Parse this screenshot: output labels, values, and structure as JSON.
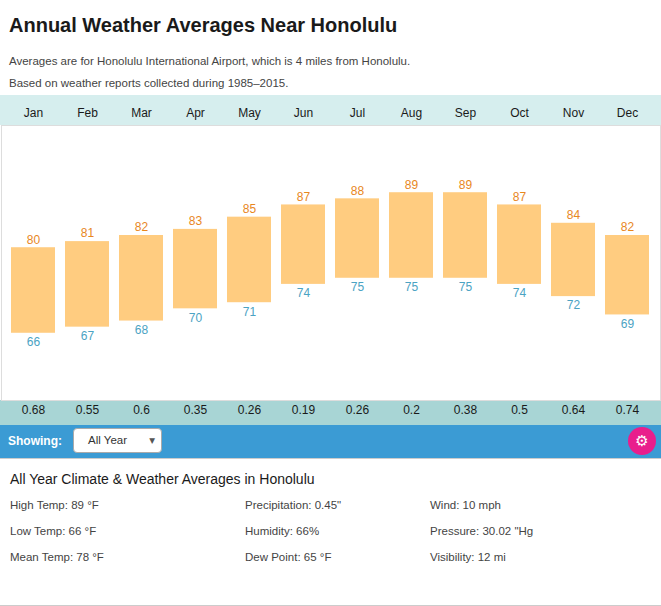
{
  "chart_data": {
    "type": "bar",
    "title": "Annual Weather Averages Near Honolulu",
    "subtitle": [
      "Averages are for Honolulu International Airport, which is 4 miles from Honolulu.",
      "Based on weather reports collected during 1985–2015."
    ],
    "categories": [
      "Jan",
      "Feb",
      "Mar",
      "Apr",
      "May",
      "Jun",
      "Jul",
      "Aug",
      "Sep",
      "Oct",
      "Nov",
      "Dec"
    ],
    "series": [
      {
        "color": "#E8871E",
        "values": [
          80,
          81,
          82,
          83,
          85,
          87,
          88,
          89,
          89,
          87,
          84,
          82
        ]
      },
      {
        "color": "#4BA3C3",
        "values": [
          66,
          67,
          68,
          70,
          71,
          74,
          75,
          75,
          75,
          74,
          72,
          69
        ]
      }
    ],
    "color": "#FFCC80",
    "precipitation": [
      0.68,
      0.55,
      0.6,
      0.35,
      0.26,
      0.19,
      0.26,
      0.2,
      0.38,
      0.5,
      0.64,
      0.74
    ],
    "ylim": [
      55,
      100
    ],
    "tick_labels": "x",
    "data_labels": true,
    "annotations": [
      "Showing:",
      "All Year",
      "▾",
      "⚙",
      "All Year Climate & Weather Averages in Honolulu",
      "High Temp: 89 °F",
      "Precipitation: 0.45\"",
      "Wind: 10 mph",
      "Low Temp: 66 °F",
      "Humidity: 66%",
      "Pressure: 30.02 \"Hg",
      "Mean Temp: 78 °F",
      "Dew Point: 65 °F",
      "Visibility: 12 mi"
    ]
  }
}
